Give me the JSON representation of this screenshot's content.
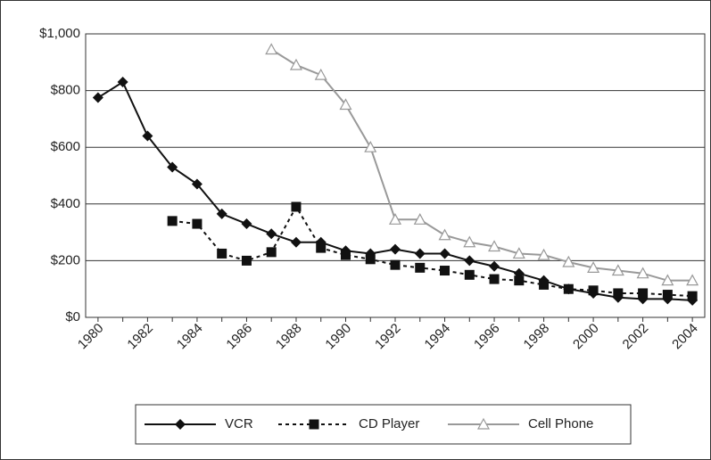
{
  "chart_data": {
    "type": "line",
    "categories": [
      "1980",
      null,
      "1982",
      null,
      "1984",
      null,
      "1986",
      null,
      "1988",
      null,
      "1990",
      null,
      "1992",
      null,
      "1994",
      null,
      "1996",
      null,
      "1998",
      null,
      "2000",
      null,
      "2002",
      null,
      "2004"
    ],
    "series": [
      {
        "name": "VCR",
        "color": "#111111",
        "dash": "none",
        "marker": "diamond",
        "values": [
          775,
          830,
          640,
          530,
          470,
          365,
          330,
          295,
          265,
          265,
          235,
          225,
          240,
          225,
          225,
          200,
          180,
          155,
          130,
          100,
          85,
          70,
          65,
          65,
          60
        ]
      },
      {
        "name": "CD Player",
        "color": "#111111",
        "dash": "4 4",
        "marker": "square",
        "values": [
          null,
          null,
          null,
          340,
          330,
          225,
          200,
          230,
          390,
          245,
          220,
          205,
          185,
          175,
          165,
          150,
          135,
          130,
          115,
          100,
          95,
          85,
          85,
          80,
          75
        ]
      },
      {
        "name": "Cell Phone",
        "color": "#999999",
        "dash": "none",
        "marker": "triangle",
        "values": [
          null,
          null,
          null,
          null,
          null,
          null,
          null,
          945,
          890,
          855,
          750,
          600,
          345,
          345,
          290,
          265,
          250,
          225,
          220,
          195,
          175,
          165,
          155,
          130,
          130
        ]
      }
    ],
    "ylim": [
      0,
      1000
    ],
    "yticks": [
      {
        "value": 0,
        "label": "$0"
      },
      {
        "value": 200,
        "label": "$200"
      },
      {
        "value": 400,
        "label": "$400"
      },
      {
        "value": 600,
        "label": "$600"
      },
      {
        "value": 800,
        "label": "$800"
      },
      {
        "value": 1000,
        "label": "$1,000"
      }
    ],
    "grid": true,
    "legend": "bottom"
  }
}
